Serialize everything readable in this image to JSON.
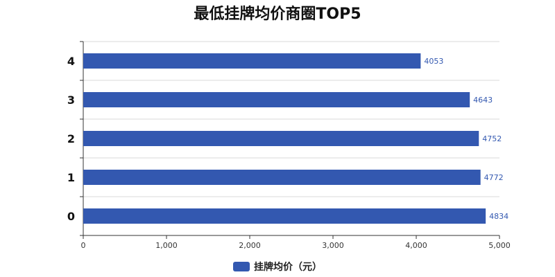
{
  "chart_data": {
    "type": "bar",
    "orientation": "horizontal",
    "title": "最低挂牌均价商圈TOP5",
    "categories": [
      "0",
      "1",
      "2",
      "3",
      "4"
    ],
    "series": [
      {
        "name": "挂牌均价（元）",
        "values": [
          4834,
          4772,
          4752,
          4643,
          4053
        ]
      }
    ],
    "xlim": [
      0,
      5000
    ],
    "x_ticks": [
      "0",
      "1,000",
      "2,000",
      "3,000",
      "4,000",
      "5,000"
    ],
    "grid": true,
    "legend_position": "bottom"
  },
  "colors": {
    "bar": "#3358b0",
    "label": "#3358b0"
  }
}
